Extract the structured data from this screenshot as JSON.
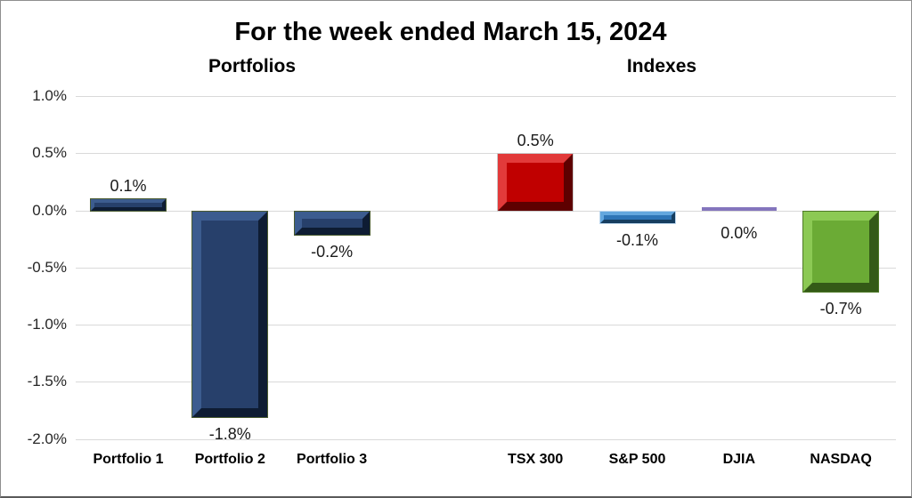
{
  "chart_data": {
    "type": "bar",
    "title": "For the week ended March 15, 2024",
    "xlabel": "",
    "ylabel": "",
    "legend": "none",
    "grid": true,
    "y_axis": {
      "min": -2.0,
      "max": 1.0,
      "tick_step": 0.5,
      "tick_labels": [
        "1.0%",
        "0.5%",
        "0.0%",
        "-0.5%",
        "-1.0%",
        "-1.5%",
        "-2.0%"
      ],
      "format": "percent"
    },
    "groups": [
      {
        "label": "Portfolios",
        "items": [
          {
            "category": "Portfolio 1",
            "value": 0.1,
            "label": "0.1%",
            "color": "#27406B",
            "highlight": "#3C5C8F",
            "shadow": "#0E1C33",
            "outline": "#4A5B2F"
          },
          {
            "category": "Portfolio 2",
            "value": -1.8,
            "label": "-1.8%",
            "color": "#27406B",
            "highlight": "#3C5C8F",
            "shadow": "#0E1C33",
            "outline": "#4A5B2F"
          },
          {
            "category": "Portfolio 3",
            "value": -0.2,
            "label": "-0.2%",
            "color": "#27406B",
            "highlight": "#3C5C8F",
            "shadow": "#0E1C33",
            "outline": "#4A5B2F"
          }
        ]
      },
      {
        "label": "Indexes",
        "items": [
          {
            "category": "TSX 300",
            "value": 0.5,
            "label": "0.5%",
            "color": "#C00000",
            "highlight": "#E23A3A",
            "shadow": "#5E0000",
            "outline": "#C9C9C9"
          },
          {
            "category": "S&P 500",
            "value": -0.1,
            "label": "-0.1%",
            "color": "#2E75B6",
            "highlight": "#63A7DE",
            "shadow": "#163E60",
            "outline": "#BDD7EE"
          },
          {
            "category": "DJIA",
            "value": 0.0,
            "label": "0.0%",
            "color": "#8475BD",
            "highlight": "#A79BD6",
            "shadow": "#584A8A",
            "outline": "#8475BD"
          },
          {
            "category": "NASDAQ",
            "value": -0.7,
            "label": "-0.7%",
            "color": "#6BAB35",
            "highlight": "#8CC954",
            "shadow": "#345A17",
            "outline": "#4F7A28"
          }
        ]
      }
    ],
    "colors": {
      "background": "#FFFFFF",
      "gridline": "#D9D9D9",
      "text": "#1A1A1A",
      "frame_border": "#8E8E8E"
    }
  }
}
